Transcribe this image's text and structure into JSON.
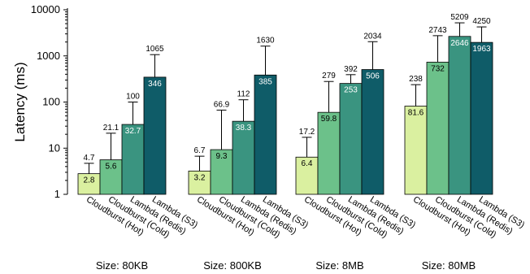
{
  "chart_data": {
    "type": "bar",
    "ylabel": "Latency (ms)",
    "yscale": "log",
    "ylim": [
      1,
      10000
    ],
    "yticks": [
      {
        "value": 1,
        "label": "1"
      },
      {
        "value": 10,
        "label": "10"
      },
      {
        "value": 100,
        "label": "100"
      },
      {
        "value": 1000,
        "label": "1000"
      },
      {
        "value": 10000,
        "label": "10000"
      }
    ],
    "series_labels": [
      "Cloudburst (Hot)",
      "Cloudburst (Cold)",
      "Lambda (Redis)",
      "Lambda (S3)"
    ],
    "colors": [
      "#daf0a0",
      "#6cc18a",
      "#3a9480",
      "#0f5c68"
    ],
    "groups": [
      {
        "label": "Size: 80KB",
        "bars": [
          {
            "median": 2.8,
            "median_label": "2.8",
            "p99": 4.7,
            "p99_label": "4.7"
          },
          {
            "median": 5.6,
            "median_label": "5.6",
            "p99": 21.1,
            "p99_label": "21.1"
          },
          {
            "median": 32.7,
            "median_label": "32.7",
            "p99": 100,
            "p99_label": "100"
          },
          {
            "median": 346,
            "median_label": "346",
            "p99": 1065,
            "p99_label": "1065"
          }
        ]
      },
      {
        "label": "Size: 800KB",
        "bars": [
          {
            "median": 3.2,
            "median_label": "3.2",
            "p99": 6.7,
            "p99_label": "6.7"
          },
          {
            "median": 9.3,
            "median_label": "9.3",
            "p99": 66.9,
            "p99_label": "66.9"
          },
          {
            "median": 38.3,
            "median_label": "38.3",
            "p99": 112,
            "p99_label": "112"
          },
          {
            "median": 385,
            "median_label": "385",
            "p99": 1630,
            "p99_label": "1630"
          }
        ]
      },
      {
        "label": "Size: 8MB",
        "bars": [
          {
            "median": 6.4,
            "median_label": "6.4",
            "p99": 17.2,
            "p99_label": "17.2"
          },
          {
            "median": 59.8,
            "median_label": "59.8",
            "p99": 279,
            "p99_label": "279"
          },
          {
            "median": 253,
            "median_label": "253",
            "p99": 392,
            "p99_label": "392"
          },
          {
            "median": 506,
            "median_label": "506",
            "p99": 2034,
            "p99_label": "2034"
          }
        ]
      },
      {
        "label": "Size: 80MB",
        "bars": [
          {
            "median": 81.6,
            "median_label": "81.6",
            "p99": 238,
            "p99_label": "238"
          },
          {
            "median": 732,
            "median_label": "732",
            "p99": 2743,
            "p99_label": "2743"
          },
          {
            "median": 2646,
            "median_label": "2646",
            "p99": 5209,
            "p99_label": "5209"
          },
          {
            "median": 1963,
            "median_label": "1963",
            "p99": 4250,
            "p99_label": "4250"
          }
        ]
      }
    ]
  }
}
